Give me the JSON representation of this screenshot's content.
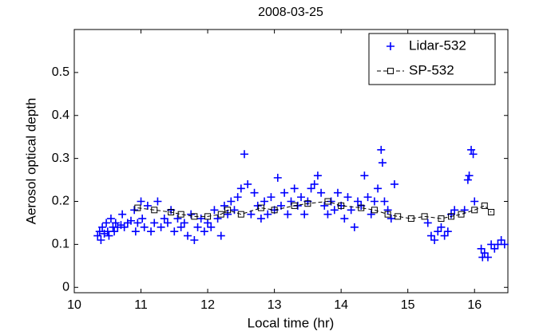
{
  "chart_data": {
    "type": "scatter",
    "title": "2008-03-25",
    "x_label": "Local time (hr)",
    "y_label": "Aerosol optical depth",
    "xlim": [
      10,
      16.5
    ],
    "ylim": [
      -0.0125,
      0.6
    ],
    "xticks": [
      10,
      11,
      12,
      13,
      14,
      15,
      16
    ],
    "yticks": [
      0,
      0.1,
      0.2,
      0.3,
      0.4,
      0.5
    ],
    "grid": false,
    "legend": "upper right",
    "series": [
      {
        "name": "Lidar-532",
        "color": "#0000ff",
        "marker": "plus",
        "x": [
          10.35,
          10.38,
          10.4,
          10.42,
          10.45,
          10.48,
          10.5,
          10.52,
          10.55,
          10.58,
          10.6,
          10.62,
          10.65,
          10.7,
          10.72,
          10.75,
          10.8,
          10.85,
          10.9,
          10.92,
          10.95,
          11.0,
          11.02,
          11.05,
          11.1,
          11.15,
          11.2,
          11.25,
          11.3,
          11.35,
          11.4,
          11.45,
          11.5,
          11.55,
          11.6,
          11.65,
          11.7,
          11.75,
          11.8,
          11.85,
          11.9,
          11.95,
          12.0,
          12.05,
          12.1,
          12.15,
          12.2,
          12.25,
          12.3,
          12.35,
          12.4,
          12.45,
          12.5,
          12.55,
          12.6,
          12.65,
          12.7,
          12.75,
          12.8,
          12.85,
          12.9,
          12.95,
          13.0,
          13.05,
          13.1,
          13.15,
          13.2,
          13.25,
          13.3,
          13.35,
          13.4,
          13.45,
          13.5,
          13.55,
          13.6,
          13.65,
          13.7,
          13.75,
          13.8,
          13.85,
          13.9,
          13.95,
          14.0,
          14.05,
          14.1,
          14.15,
          14.2,
          14.25,
          14.3,
          14.35,
          14.4,
          14.45,
          14.5,
          14.55,
          14.6,
          14.62,
          14.65,
          14.7,
          14.75,
          14.8,
          15.3,
          15.35,
          15.4,
          15.45,
          15.5,
          15.55,
          15.6,
          15.65,
          15.7,
          15.85,
          15.9,
          15.92,
          15.95,
          15.98,
          16.0,
          16.1,
          16.12,
          16.15,
          16.2,
          16.25,
          16.3,
          16.35,
          16.4,
          16.45
        ],
        "values": [
          0.12,
          0.13,
          0.11,
          0.14,
          0.125,
          0.15,
          0.13,
          0.12,
          0.16,
          0.14,
          0.13,
          0.15,
          0.14,
          0.145,
          0.17,
          0.14,
          0.15,
          0.155,
          0.18,
          0.13,
          0.15,
          0.2,
          0.16,
          0.14,
          0.19,
          0.13,
          0.15,
          0.2,
          0.14,
          0.16,
          0.15,
          0.18,
          0.13,
          0.16,
          0.14,
          0.15,
          0.12,
          0.17,
          0.11,
          0.14,
          0.16,
          0.13,
          0.15,
          0.14,
          0.18,
          0.16,
          0.12,
          0.19,
          0.17,
          0.2,
          0.18,
          0.21,
          0.23,
          0.31,
          0.24,
          0.17,
          0.22,
          0.19,
          0.16,
          0.2,
          0.17,
          0.21,
          0.18,
          0.255,
          0.19,
          0.22,
          0.17,
          0.2,
          0.23,
          0.19,
          0.21,
          0.17,
          0.2,
          0.23,
          0.24,
          0.26,
          0.22,
          0.19,
          0.17,
          0.2,
          0.18,
          0.22,
          0.19,
          0.16,
          0.21,
          0.18,
          0.14,
          0.2,
          0.19,
          0.26,
          0.21,
          0.17,
          0.2,
          0.23,
          0.32,
          0.29,
          0.2,
          0.18,
          0.16,
          0.24,
          0.15,
          0.12,
          0.11,
          0.13,
          0.14,
          0.12,
          0.13,
          0.17,
          0.18,
          0.18,
          0.25,
          0.26,
          0.32,
          0.31,
          0.2,
          0.09,
          0.07,
          0.08,
          0.07,
          0.1,
          0.09,
          0.1,
          0.11,
          0.1
        ]
      },
      {
        "name": "SP-532",
        "color": "#000000",
        "marker": "square",
        "line": "dashed",
        "x": [
          10.95,
          11.2,
          11.45,
          11.6,
          11.8,
          12.0,
          12.2,
          12.3,
          12.5,
          12.8,
          13.0,
          13.3,
          13.5,
          13.8,
          14.0,
          14.3,
          14.5,
          14.7,
          14.85,
          15.05,
          15.25,
          15.5,
          15.65,
          15.8,
          16.0,
          16.15,
          16.25
        ],
        "values": [
          0.185,
          0.18,
          0.175,
          0.17,
          0.165,
          0.165,
          0.17,
          0.18,
          0.17,
          0.185,
          0.18,
          0.19,
          0.195,
          0.2,
          0.19,
          0.185,
          0.18,
          0.17,
          0.165,
          0.16,
          0.165,
          0.16,
          0.165,
          0.17,
          0.18,
          0.19,
          0.175
        ]
      }
    ]
  }
}
